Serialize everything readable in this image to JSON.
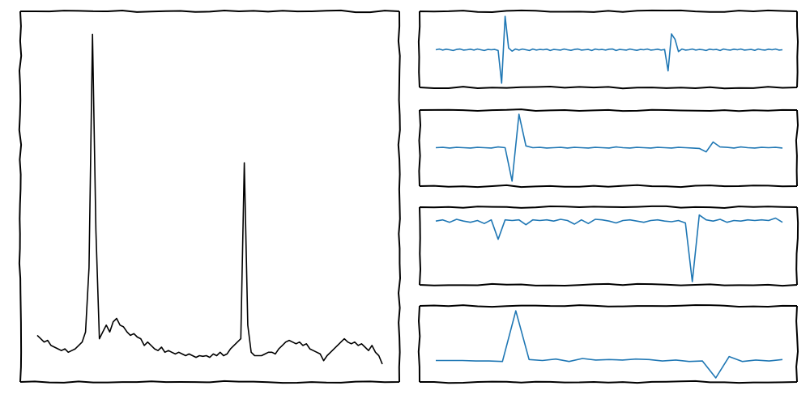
{
  "colors": {
    "main_line": "#000000",
    "detail_line": "#1f77b4",
    "frame": "#000000"
  },
  "chart_data": [
    {
      "type": "line",
      "style": "xkcd",
      "ylim": [
        0,
        1
      ],
      "grid": false,
      "series": [
        {
          "x": [
            0,
            1,
            2,
            3,
            4,
            5,
            6,
            7,
            8,
            9,
            10,
            11,
            12,
            13,
            14,
            15,
            16,
            17,
            18,
            19,
            20,
            21,
            22,
            23,
            24,
            25,
            26,
            27,
            28,
            29,
            30,
            31,
            32,
            33,
            34,
            35,
            36,
            37,
            38,
            39,
            40,
            41,
            42,
            43,
            44,
            45,
            46,
            47,
            48,
            49,
            50,
            51,
            52,
            53,
            54,
            55,
            56,
            57,
            58,
            59,
            60,
            61,
            62,
            63,
            64,
            65,
            66,
            67,
            68,
            69,
            70,
            71,
            72,
            73,
            74,
            75,
            76,
            77,
            78,
            79,
            80,
            81,
            82,
            83,
            84,
            85,
            86,
            87,
            88,
            89,
            90,
            91,
            92,
            93,
            94,
            95,
            96,
            97,
            98,
            99,
            100
          ],
          "values": [
            0.09,
            0.08,
            0.07,
            0.075,
            0.06,
            0.055,
            0.05,
            0.045,
            0.05,
            0.04,
            0.045,
            0.05,
            0.06,
            0.07,
            0.1,
            0.29,
            0.98,
            0.4,
            0.08,
            0.1,
            0.12,
            0.1,
            0.13,
            0.14,
            0.12,
            0.115,
            0.1,
            0.09,
            0.095,
            0.085,
            0.08,
            0.06,
            0.07,
            0.06,
            0.05,
            0.045,
            0.055,
            0.04,
            0.045,
            0.04,
            0.035,
            0.04,
            0.035,
            0.03,
            0.035,
            0.03,
            0.025,
            0.03,
            0.028,
            0.03,
            0.025,
            0.035,
            0.03,
            0.04,
            0.03,
            0.035,
            0.05,
            0.06,
            0.07,
            0.08,
            0.6,
            0.12,
            0.04,
            0.03,
            0.03,
            0.03,
            0.035,
            0.04,
            0.04,
            0.035,
            0.05,
            0.06,
            0.07,
            0.075,
            0.07,
            0.065,
            0.07,
            0.06,
            0.065,
            0.05,
            0.045,
            0.04,
            0.035,
            0.015,
            0.03,
            0.04,
            0.05,
            0.06,
            0.07,
            0.08,
            0.07,
            0.065,
            0.07,
            0.06,
            0.065,
            0.055,
            0.045,
            0.06,
            0.04,
            0.03,
            0.005
          ]
        }
      ]
    },
    {
      "type": "line",
      "ylim": [
        -1,
        1
      ],
      "grid": false,
      "series": [
        {
          "x": [
            0,
            1,
            2,
            3,
            4,
            5,
            6,
            7,
            8,
            9,
            10,
            11,
            12,
            13,
            14,
            15,
            16,
            17,
            18,
            19,
            20,
            21,
            22,
            23,
            24,
            25,
            26,
            27,
            28,
            29,
            30,
            31,
            32,
            33,
            34,
            35,
            36,
            37,
            38,
            39,
            40,
            41,
            42,
            43,
            44,
            45,
            46,
            47,
            48,
            49,
            50,
            51,
            52,
            53,
            54,
            55,
            56,
            57,
            58,
            59,
            60,
            61,
            62,
            63,
            64,
            65,
            66,
            67,
            68,
            69,
            70,
            71,
            72,
            73,
            74,
            75,
            76,
            77,
            78,
            79,
            80,
            81,
            82,
            83,
            84,
            85,
            86,
            87,
            88,
            89,
            90,
            91,
            92,
            93,
            94,
            95,
            96,
            97,
            98,
            99,
            100
          ],
          "values": [
            0,
            0.02,
            -0.01,
            0.015,
            0,
            -0.02,
            0.01,
            0.02,
            -0.01,
            0,
            0.015,
            -0.01,
            0.02,
            0,
            -0.02,
            0.01,
            0,
            0.01,
            -0.02,
            -0.95,
            0.95,
            0.05,
            -0.04,
            0.02,
            -0.01,
            0.02,
            0,
            -0.02,
            0.02,
            -0.01,
            0.01,
            0,
            0.015,
            -0.02,
            0.01,
            0,
            -0.01,
            0.02,
            0,
            -0.015,
            0.01,
            0.02,
            -0.01,
            0,
            0.01,
            -0.02,
            0.02,
            0,
            0.01,
            -0.01,
            0.015,
            0.02,
            -0.02,
            0.01,
            0,
            -0.01,
            0.02,
            0,
            -0.015,
            0.01,
            0,
            0.02,
            -0.01,
            0,
            0.015,
            -0.01,
            0.01,
            -0.6,
            0.45,
            0.3,
            -0.05,
            0.02,
            -0.01,
            0,
            0.02,
            -0.01,
            0.01,
            0,
            -0.02,
            0.015,
            0,
            0.01,
            -0.02,
            0.02,
            0,
            -0.01,
            0.015,
            0,
            0.02,
            -0.01,
            0,
            0.01,
            -0.015,
            0.02,
            0,
            -0.01,
            0.015,
            0,
            0.02,
            -0.01,
            0
          ]
        }
      ]
    },
    {
      "type": "line",
      "ylim": [
        -1,
        1
      ],
      "grid": false,
      "series": [
        {
          "x": [
            0,
            1,
            2,
            3,
            4,
            5,
            6,
            7,
            8,
            9,
            10,
            11,
            12,
            13,
            14,
            15,
            16,
            17,
            18,
            19,
            20,
            21,
            22,
            23,
            24,
            25,
            26,
            27,
            28,
            29,
            30,
            31,
            32,
            33,
            34,
            35,
            36,
            37,
            38,
            39,
            40,
            41,
            42,
            43,
            44,
            45,
            46,
            47,
            48,
            49,
            50
          ],
          "values": [
            0,
            0.01,
            -0.01,
            0.01,
            0,
            -0.01,
            0.01,
            0,
            -0.01,
            0.02,
            0,
            -0.95,
            0.95,
            0.05,
            0,
            0.01,
            -0.01,
            0,
            0.01,
            -0.01,
            0.01,
            0,
            -0.01,
            0.01,
            0,
            -0.01,
            0.02,
            0,
            -0.01,
            0.01,
            0,
            -0.01,
            0.01,
            0,
            -0.01,
            0.01,
            0,
            -0.01,
            -0.02,
            -0.12,
            0.16,
            0.02,
            0.01,
            -0.01,
            0.02,
            0,
            -0.01,
            0.01,
            0,
            0.01,
            -0.01
          ]
        }
      ]
    },
    {
      "type": "line",
      "ylim": [
        -1,
        0.15
      ],
      "grid": false,
      "series": [
        {
          "x": [
            0,
            1,
            2,
            3,
            4,
            5,
            6,
            7,
            8,
            9,
            10,
            11,
            12,
            13,
            14,
            15,
            16,
            17,
            18,
            19,
            20,
            21,
            22,
            23,
            24,
            25,
            26,
            27,
            28,
            29,
            30,
            31,
            32,
            33,
            34,
            35,
            36,
            37,
            38,
            39,
            40,
            41,
            42,
            43,
            44,
            45,
            46,
            47,
            48,
            49,
            50
          ],
          "values": [
            0,
            0.02,
            -0.02,
            0.03,
            0,
            -0.02,
            0.01,
            -0.04,
            0.02,
            -0.3,
            0.02,
            0.01,
            0.02,
            -0.06,
            0.02,
            0.01,
            0.02,
            0,
            0.03,
            0.01,
            -0.05,
            0.02,
            -0.04,
            0.03,
            0.02,
            0,
            -0.03,
            0.01,
            0.02,
            0,
            -0.02,
            0.01,
            0.02,
            0,
            -0.01,
            0.01,
            -0.03,
            -1,
            0.1,
            0.02,
            0,
            0.03,
            -0.02,
            0.01,
            0,
            0.02,
            0.01,
            0.02,
            0.01,
            0.05,
            -0.02
          ]
        }
      ]
    },
    {
      "type": "line",
      "ylim": [
        -0.35,
        1.05
      ],
      "grid": false,
      "series": [
        {
          "x": [
            0,
            1,
            2,
            3,
            4,
            5,
            6,
            7,
            8,
            9,
            10,
            11,
            12,
            13,
            14,
            15,
            16,
            17,
            18,
            19,
            20,
            21,
            22,
            23,
            24,
            25,
            26
          ],
          "values": [
            0,
            0,
            0,
            -0.01,
            -0.01,
            -0.02,
            1,
            0.02,
            0,
            0.03,
            -0.02,
            0.04,
            0.01,
            0.02,
            0.01,
            0.03,
            0.02,
            -0.01,
            0.01,
            -0.02,
            -0.01,
            -0.35,
            0.08,
            -0.02,
            0.01,
            -0.01,
            0.02
          ]
        }
      ]
    }
  ]
}
